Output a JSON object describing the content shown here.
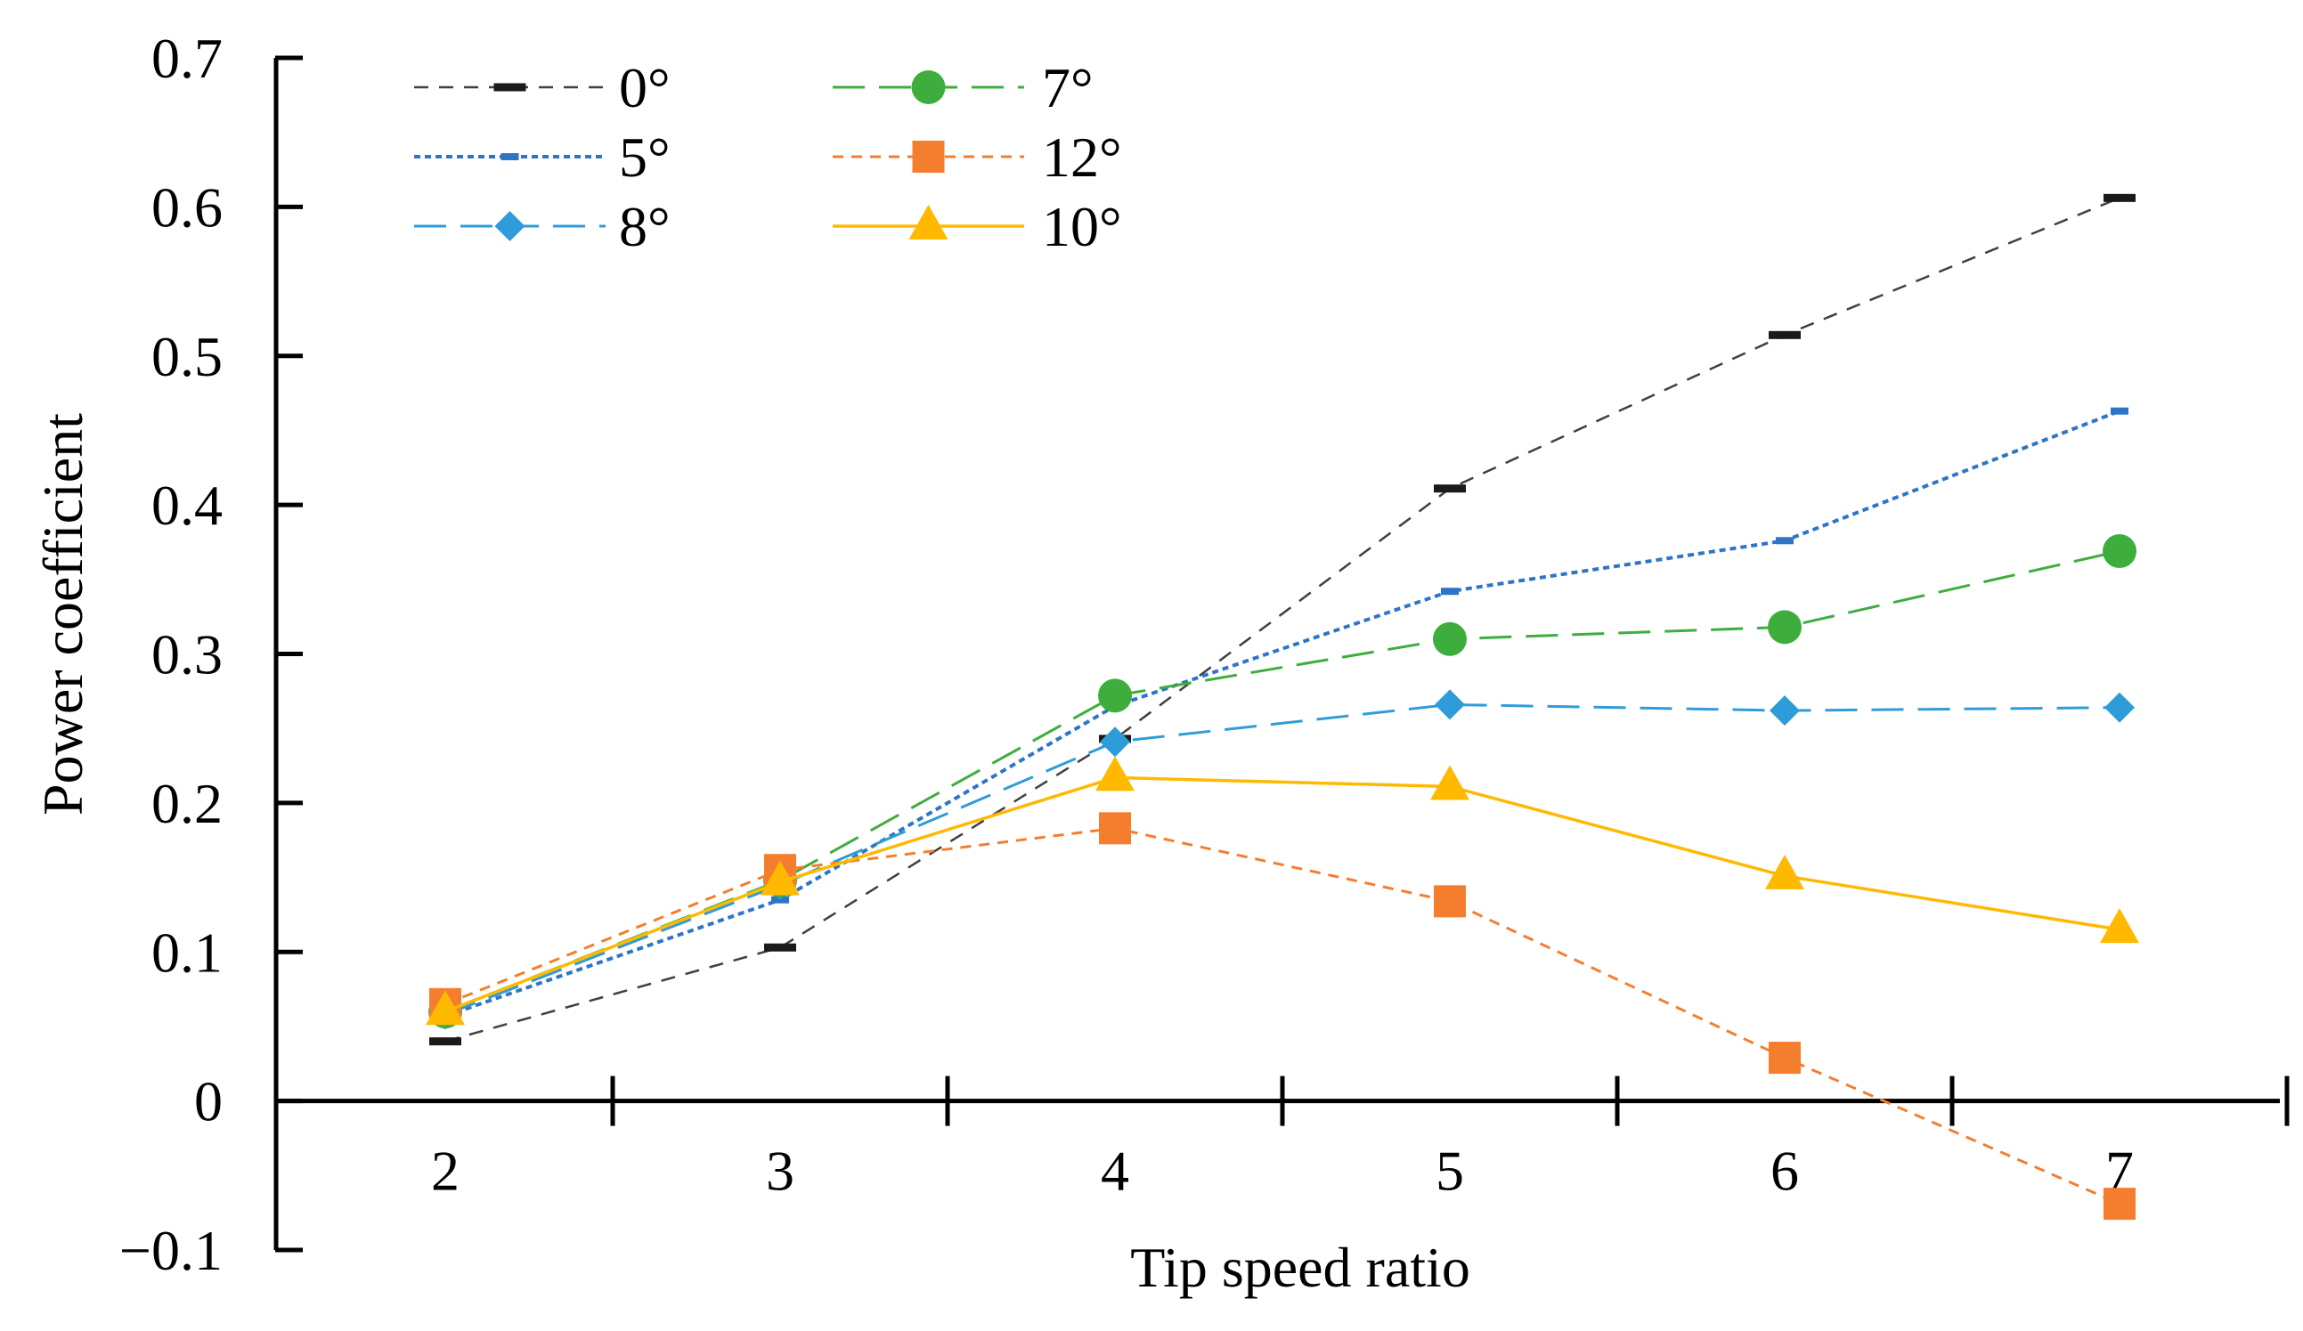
{
  "chart_data": {
    "type": "line",
    "title": "",
    "xlabel": "Tip speed ratio",
    "ylabel": "Power coefficient",
    "x": [
      2,
      3,
      4,
      5,
      6,
      7
    ],
    "xlim": [
      1.5,
      7.5
    ],
    "ylim": [
      -0.1,
      0.7
    ],
    "yticks": [
      -0.1,
      0,
      0.1,
      0.2,
      0.3,
      0.4,
      0.5,
      0.6,
      0.7
    ],
    "ytick_labels": [
      "−0.1",
      "0",
      "0.1",
      "0.2",
      "0.3",
      "0.4",
      "0.5",
      "0.6",
      "0.7"
    ],
    "xtick_labels": [
      "2",
      "3",
      "4",
      "5",
      "6",
      "7"
    ],
    "grid": false,
    "legend_position": "top-left",
    "series": [
      {
        "name": "0°",
        "color": "#404040",
        "marker": "dash",
        "line": "dashed-thin",
        "values": [
          0.04,
          0.103,
          0.243,
          0.411,
          0.514,
          0.606
        ]
      },
      {
        "name": "5°",
        "color": "#2E75C8",
        "marker": "dash-small",
        "line": "dotted",
        "values": [
          0.057,
          0.135,
          0.265,
          0.342,
          0.376,
          0.463
        ]
      },
      {
        "name": "8°",
        "color": "#2E9CD8",
        "marker": "diamond",
        "line": "long-dash",
        "values": [
          0.058,
          0.145,
          0.241,
          0.266,
          0.262,
          0.264
        ]
      },
      {
        "name": "7°",
        "color": "#3DAE3D",
        "marker": "circle",
        "line": "long-dash",
        "values": [
          0.06,
          0.148,
          0.272,
          0.31,
          0.318,
          0.369
        ]
      },
      {
        "name": "12°",
        "color": "#F57E2E",
        "marker": "square",
        "line": "short-dash",
        "values": [
          0.065,
          0.155,
          0.183,
          0.134,
          0.029,
          -0.069
        ]
      },
      {
        "name": "10°",
        "color": "#FFB900",
        "marker": "triangle",
        "line": "solid",
        "values": [
          0.06,
          0.147,
          0.217,
          0.211,
          0.151,
          0.115
        ]
      }
    ]
  }
}
